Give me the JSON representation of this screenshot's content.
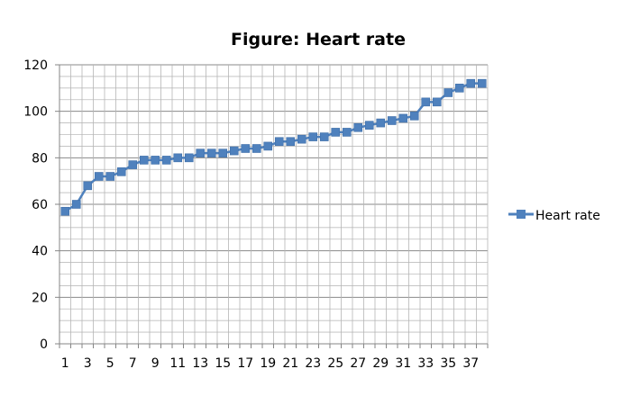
{
  "chart_data": {
    "type": "line",
    "title": "Figure: Heart rate",
    "xlabel": "",
    "ylabel": "",
    "x": [
      1,
      2,
      3,
      4,
      5,
      6,
      7,
      8,
      9,
      10,
      11,
      12,
      13,
      14,
      15,
      16,
      17,
      18,
      19,
      20,
      21,
      22,
      23,
      24,
      25,
      26,
      27,
      28,
      29,
      30,
      31,
      32,
      33,
      34,
      35,
      36,
      37,
      38
    ],
    "series": [
      {
        "name": "Heart rate",
        "color": "#4F81BD",
        "marker": "square",
        "values": [
          57,
          60,
          68,
          72,
          72,
          74,
          77,
          79,
          79,
          79,
          80,
          80,
          82,
          82,
          82,
          83,
          84,
          84,
          85,
          87,
          87,
          88,
          89,
          89,
          91,
          91,
          93,
          94,
          95,
          96,
          97,
          98,
          104,
          104,
          108,
          110,
          112,
          112
        ]
      }
    ],
    "x_tick_labels": [
      "1",
      "3",
      "5",
      "7",
      "9",
      "11",
      "13",
      "15",
      "17",
      "19",
      "21",
      "23",
      "25",
      "27",
      "29",
      "31",
      "33",
      "35",
      "37"
    ],
    "y_tick_labels": [
      "0",
      "20",
      "40",
      "60",
      "80",
      "100",
      "120"
    ],
    "ylim": [
      0,
      120
    ],
    "y_major_step": 20,
    "y_minor_step": 5,
    "grid": true,
    "legend_position": "right"
  }
}
